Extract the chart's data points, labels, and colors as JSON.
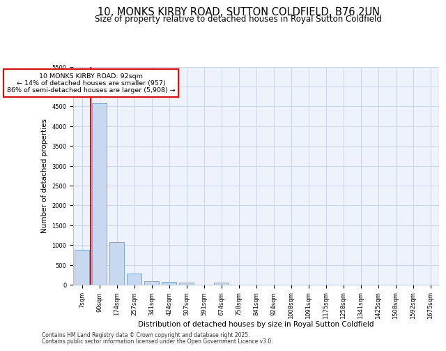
{
  "title1": "10, MONKS KIRBY ROAD, SUTTON COLDFIELD, B76 2UN",
  "title2": "Size of property relative to detached houses in Royal Sutton Coldfield",
  "xlabel": "Distribution of detached houses by size in Royal Sutton Coldfield",
  "ylabel": "Number of detached properties",
  "categories": [
    "7sqm",
    "90sqm",
    "174sqm",
    "257sqm",
    "341sqm",
    "424sqm",
    "507sqm",
    "591sqm",
    "674sqm",
    "758sqm",
    "841sqm",
    "924sqm",
    "1008sqm",
    "1091sqm",
    "1175sqm",
    "1258sqm",
    "1341sqm",
    "1425sqm",
    "1508sqm",
    "1592sqm",
    "1675sqm"
  ],
  "values": [
    880,
    4580,
    1080,
    290,
    80,
    75,
    50,
    0,
    50,
    0,
    0,
    0,
    0,
    0,
    0,
    0,
    0,
    0,
    0,
    0,
    0
  ],
  "bar_color": "#c8d8ee",
  "bar_edge_color": "#7aaad0",
  "vline_color": "red",
  "vline_x": 0.5,
  "annotation_text": "10 MONKS KIRBY ROAD: 92sqm\n← 14% of detached houses are smaller (957)\n86% of semi-detached houses are larger (5,908) →",
  "annotation_box_color": "white",
  "annotation_box_edge": "red",
  "ylim": [
    0,
    5500
  ],
  "yticks": [
    0,
    500,
    1000,
    1500,
    2000,
    2500,
    3000,
    3500,
    4000,
    4500,
    5000,
    5500
  ],
  "bg_color": "#eef2fb",
  "grid_color": "#c8d0e8",
  "footer1": "Contains HM Land Registry data © Crown copyright and database right 2025.",
  "footer2": "Contains public sector information licensed under the Open Government Licence v3.0.",
  "title_fontsize": 10.5,
  "subtitle_fontsize": 8.5,
  "tick_fontsize": 6.0,
  "label_fontsize": 7.5,
  "footer_fontsize": 5.5
}
